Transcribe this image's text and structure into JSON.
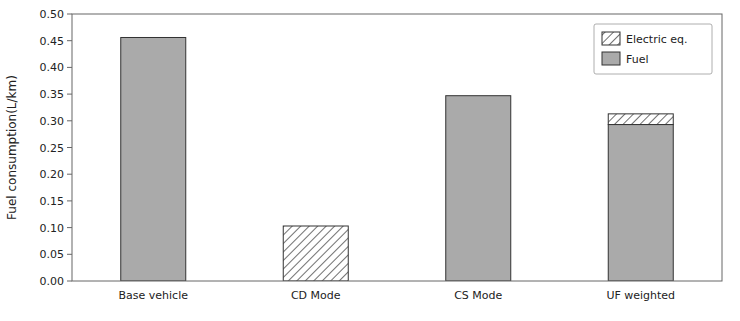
{
  "chart_data": {
    "type": "bar",
    "stacked": true,
    "ylabel": "Fuel consumption(L/km)",
    "categories": [
      "Base vehicle",
      "CD Mode",
      "CS Mode",
      "UF weighted"
    ],
    "series": [
      {
        "name": "Fuel",
        "color": "#AAAAAA",
        "values": [
          0.456,
          0.0,
          0.347,
          0.293
        ]
      },
      {
        "name": "Electric eq.",
        "color": "#FFFFFF",
        "values": [
          0.0,
          0.103,
          0.0,
          0.02
        ]
      }
    ],
    "ylim": [
      0.0,
      0.5
    ],
    "yticks": [
      {
        "value": 0.0,
        "label": "0.00"
      },
      0.05,
      {
        "value": 0.1,
        "label": "0.10"
      },
      0.15,
      {
        "value": 0.2,
        "label": "0.20"
      },
      0.25,
      {
        "value": 0.3,
        "label": "0.30"
      },
      0.35,
      {
        "value": 0.4,
        "label": "0.40"
      },
      0.45,
      {
        "value": 0.5,
        "label": "0.50"
      }
    ],
    "grid": false,
    "legend": "upper right"
  }
}
